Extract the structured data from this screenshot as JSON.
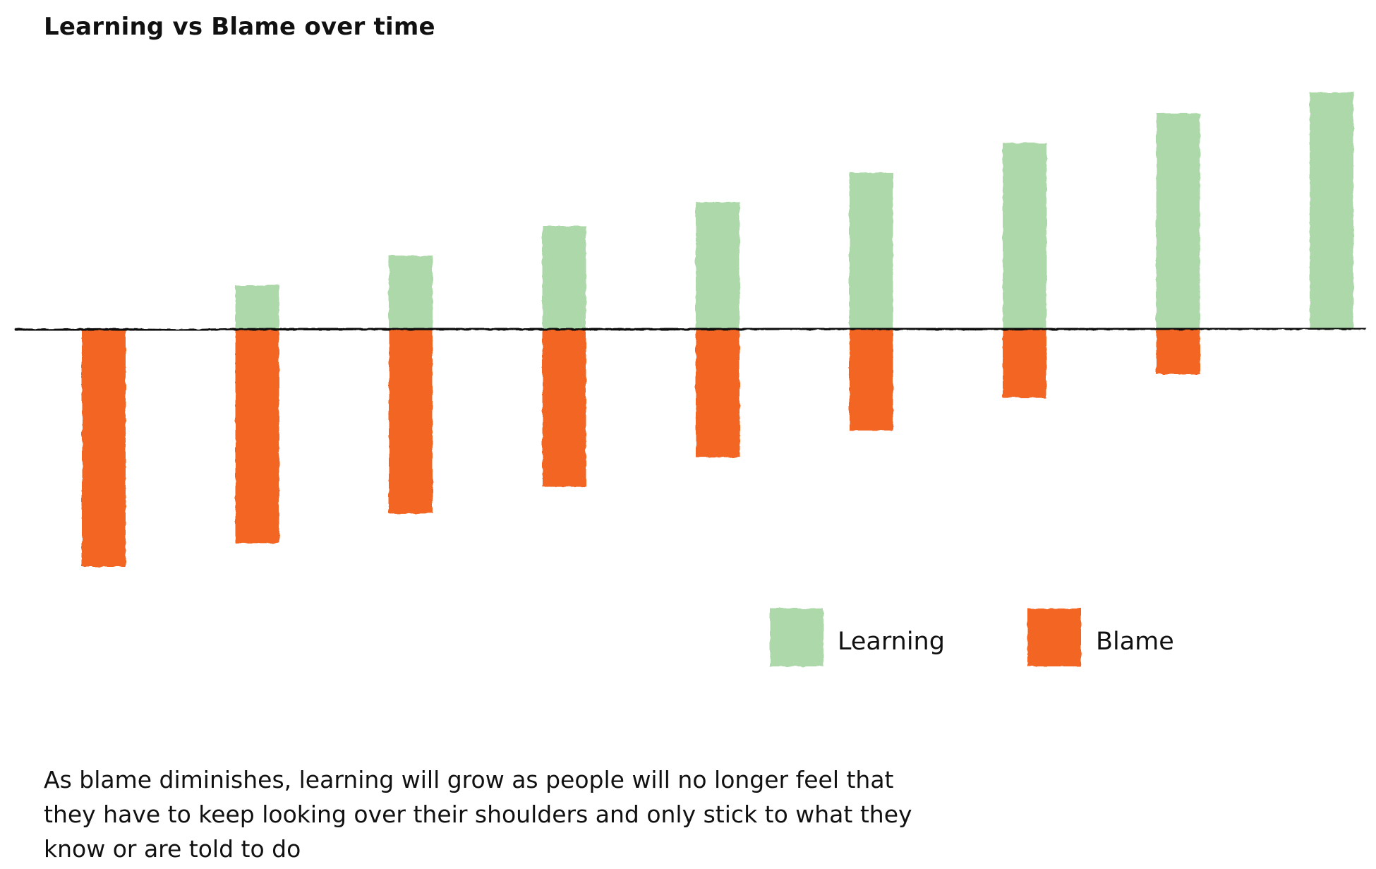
{
  "chart_data": {
    "type": "bar",
    "title": "Learning vs Blame over time",
    "xlabel": "",
    "ylabel": "",
    "categories": [
      "",
      "",
      "",
      "",
      "",
      "",
      "",
      "",
      ""
    ],
    "series": [
      {
        "name": "Learning",
        "color": "#add8a9",
        "values": [
          0,
          1.5,
          2.5,
          3.5,
          4.3,
          5.3,
          6.3,
          7.3,
          8.0
        ]
      },
      {
        "name": "Blame",
        "color": "#f26523",
        "values": [
          -8.0,
          -7.2,
          -6.2,
          -5.3,
          -4.3,
          -3.4,
          -2.3,
          -1.5,
          0
        ]
      }
    ],
    "ylim": [
      -8,
      8
    ],
    "legend_position": "bottom-right",
    "grid": false,
    "axes_visible": false
  },
  "caption": {
    "lines": [
      "As blame diminishes, learning will grow as people will no longer feel that",
      "they have to keep looking over their shoulders and only stick to what they",
      "know or are told to do"
    ]
  }
}
